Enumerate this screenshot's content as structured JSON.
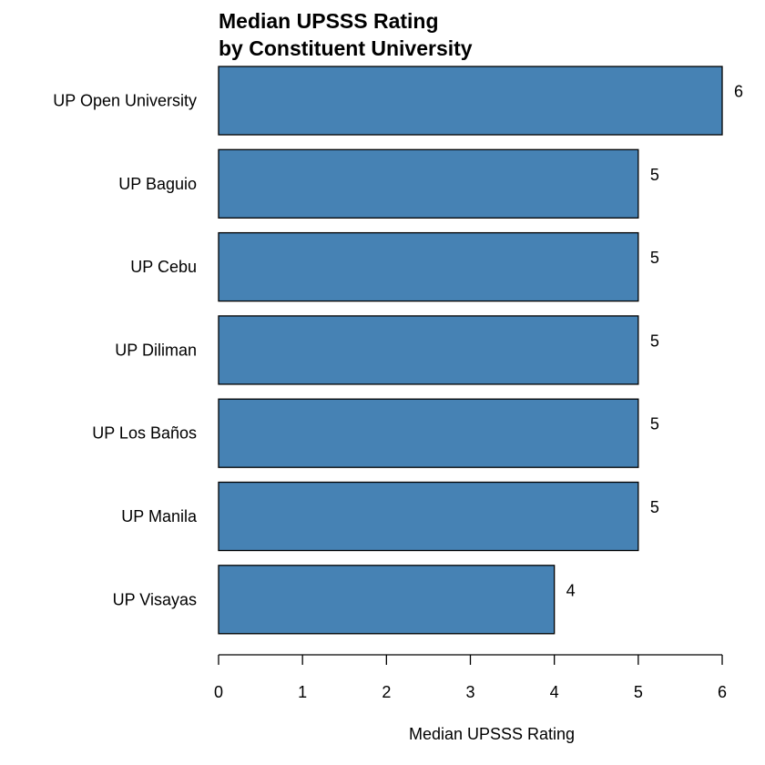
{
  "chart_data": {
    "type": "bar",
    "orientation": "horizontal",
    "title_lines": [
      "Median UPSSS Rating",
      "by Constituent University"
    ],
    "xlabel": "Median UPSSS Rating",
    "ylabel": "",
    "xlim": [
      0,
      6
    ],
    "x_ticks": [
      "0",
      "1",
      "2",
      "3",
      "4",
      "5",
      "6"
    ],
    "categories": [
      "UP Open University",
      "UP Baguio",
      "UP Cebu",
      "UP Diliman",
      "UP Los Baños",
      "UP Manila",
      "UP Visayas"
    ],
    "values": [
      6,
      5,
      5,
      5,
      5,
      5,
      4
    ],
    "value_labels": [
      "6",
      "5",
      "5",
      "5",
      "5",
      "5",
      "4"
    ],
    "bar_color": "#4682b4",
    "grid": false,
    "legend": "none"
  }
}
